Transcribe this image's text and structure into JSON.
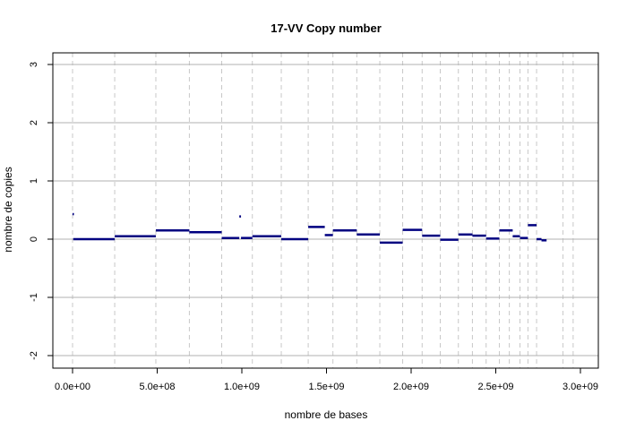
{
  "chart_data": {
    "type": "line",
    "title": "17-VV Copy number",
    "xlabel": "nombre de bases",
    "ylabel": "nombre de copies",
    "xlim": [
      0,
      3000000000
    ],
    "ylim": [
      -2,
      3
    ],
    "x_ticks": [
      {
        "value": 0,
        "label": "0.0e+00"
      },
      {
        "value": 500000000,
        "label": "5.0e+08"
      },
      {
        "value": 1000000000,
        "label": "1.0e+09"
      },
      {
        "value": 1500000000,
        "label": "1.5e+09"
      },
      {
        "value": 2000000000,
        "label": "2.0e+09"
      },
      {
        "value": 2500000000,
        "label": "2.5e+09"
      },
      {
        "value": 3000000000,
        "label": "3.0e+09"
      }
    ],
    "y_ticks": [
      {
        "value": -2,
        "label": "-2"
      },
      {
        "value": -1,
        "label": "-1"
      },
      {
        "value": 0,
        "label": "0"
      },
      {
        "value": 1,
        "label": "1"
      },
      {
        "value": 2,
        "label": "2"
      },
      {
        "value": 3,
        "label": "3"
      }
    ],
    "horizontal_grid": true,
    "horizontal_grid_color": "#b0b0b0",
    "vertical_boundary_color": "#c8c8c8",
    "segment_color": "#000080",
    "chromosome_boundaries": [
      0,
      249000000,
      492000000,
      690000000,
      881000000,
      1062000000,
      1233000000,
      1392000000,
      1538000000,
      1679000000,
      1815000000,
      1950000000,
      2065000000,
      2172000000,
      2279000000,
      2362000000,
      2443000000,
      2521000000,
      2580000000,
      2643000000,
      2690000000,
      2741000000,
      2897000000,
      2957000000
    ],
    "segments": [
      {
        "x0": 0,
        "x1": 4000000,
        "y": 0.43
      },
      {
        "x0": 4000000,
        "x1": 249000000,
        "y": 0.0
      },
      {
        "x0": 249000000,
        "x1": 492000000,
        "y": 0.05
      },
      {
        "x0": 492000000,
        "x1": 690000000,
        "y": 0.15
      },
      {
        "x0": 690000000,
        "x1": 881000000,
        "y": 0.12
      },
      {
        "x0": 881000000,
        "x1": 985000000,
        "y": 0.02
      },
      {
        "x0": 985000000,
        "x1": 995000000,
        "y": 0.39
      },
      {
        "x0": 995000000,
        "x1": 1062000000,
        "y": 0.02
      },
      {
        "x0": 1062000000,
        "x1": 1233000000,
        "y": 0.05
      },
      {
        "x0": 1233000000,
        "x1": 1392000000,
        "y": 0.0
      },
      {
        "x0": 1392000000,
        "x1": 1490000000,
        "y": 0.21
      },
      {
        "x0": 1490000000,
        "x1": 1538000000,
        "y": 0.07
      },
      {
        "x0": 1538000000,
        "x1": 1679000000,
        "y": 0.15
      },
      {
        "x0": 1679000000,
        "x1": 1815000000,
        "y": 0.08
      },
      {
        "x0": 1815000000,
        "x1": 1950000000,
        "y": -0.06
      },
      {
        "x0": 1950000000,
        "x1": 2065000000,
        "y": 0.16
      },
      {
        "x0": 2065000000,
        "x1": 2172000000,
        "y": 0.06
      },
      {
        "x0": 2172000000,
        "x1": 2279000000,
        "y": -0.01
      },
      {
        "x0": 2279000000,
        "x1": 2362000000,
        "y": 0.08
      },
      {
        "x0": 2362000000,
        "x1": 2443000000,
        "y": 0.06
      },
      {
        "x0": 2443000000,
        "x1": 2521000000,
        "y": 0.01
      },
      {
        "x0": 2521000000,
        "x1": 2600000000,
        "y": 0.15
      },
      {
        "x0": 2600000000,
        "x1": 2643000000,
        "y": 0.05
      },
      {
        "x0": 2643000000,
        "x1": 2690000000,
        "y": 0.02
      },
      {
        "x0": 2690000000,
        "x1": 2741000000,
        "y": 0.24
      },
      {
        "x0": 2741000000,
        "x1": 2770000000,
        "y": 0.0
      },
      {
        "x0": 2770000000,
        "x1": 2800000000,
        "y": -0.02
      }
    ]
  }
}
